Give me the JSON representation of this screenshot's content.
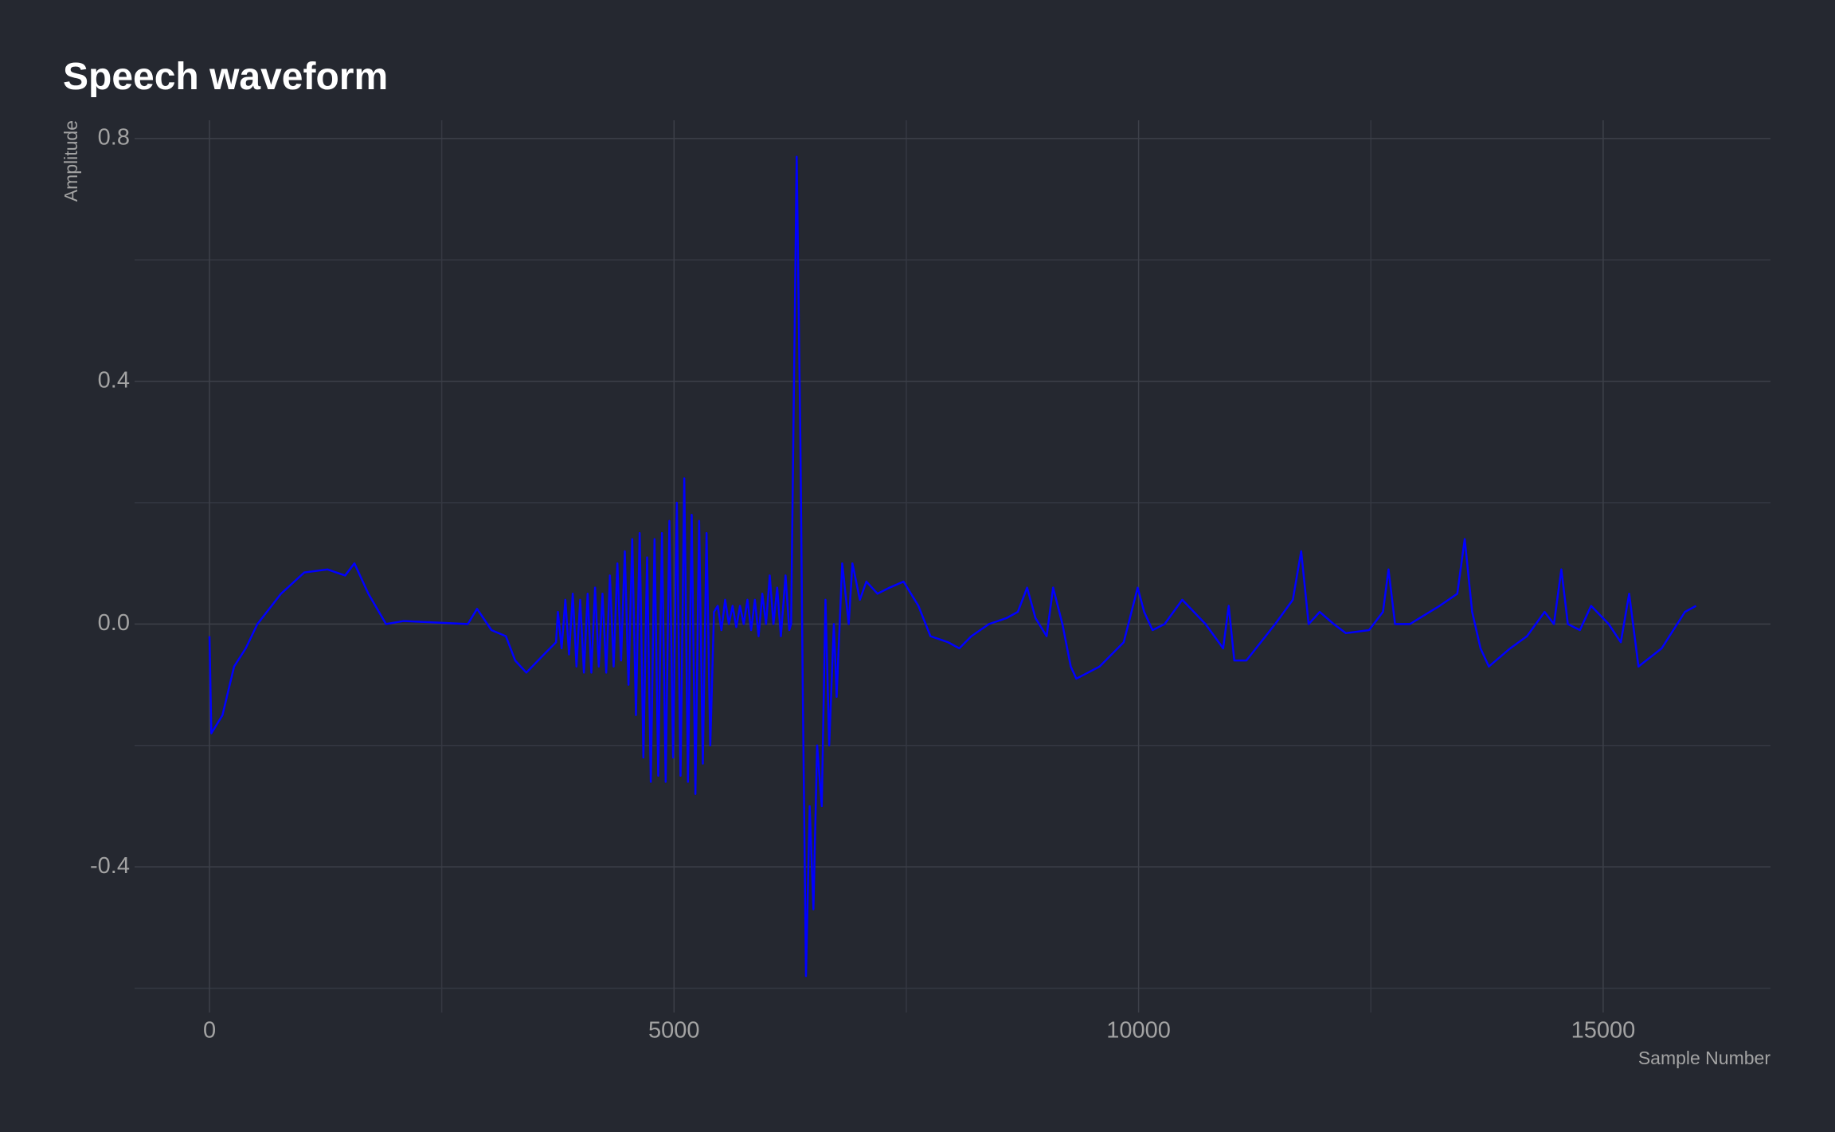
{
  "chart_data": {
    "type": "line",
    "title": "Speech waveform",
    "x_label": "Sample Number",
    "y_label": "Amplitude",
    "x": [
      0,
      20,
      140,
      265,
      390,
      516,
      770,
      1020,
      1270,
      1460,
      1560,
      1710,
      1900,
      2090,
      2780,
      2880,
      3035,
      3190,
      3290,
      3410,
      3600,
      3730,
      3750,
      3790,
      3830,
      3870,
      3910,
      3950,
      3990,
      4030,
      4070,
      4110,
      4150,
      4190,
      4230,
      4270,
      4310,
      4350,
      4390,
      4430,
      4470,
      4510,
      4550,
      4590,
      4630,
      4670,
      4710,
      4750,
      4790,
      4830,
      4870,
      4910,
      4950,
      4990,
      5030,
      5070,
      5110,
      5150,
      5190,
      5230,
      5270,
      5310,
      5350,
      5390,
      5430,
      5470,
      5510,
      5550,
      5590,
      5630,
      5670,
      5710,
      5750,
      5790,
      5830,
      5870,
      5910,
      5950,
      5990,
      6030,
      6070,
      6110,
      6150,
      6200,
      6240,
      6260,
      6320,
      6360,
      6385,
      6420,
      6460,
      6500,
      6540,
      6590,
      6630,
      6670,
      6720,
      6750,
      6810,
      6880,
      6920,
      7000,
      7070,
      7190,
      7320,
      7470,
      7630,
      7760,
      7950,
      8070,
      8200,
      8390,
      8580,
      8700,
      8800,
      8890,
      9010,
      9080,
      9180,
      9270,
      9330,
      9580,
      9840,
      9990,
      10060,
      10150,
      10280,
      10470,
      10720,
      10910,
      10970,
      11030,
      11160,
      11470,
      11660,
      11750,
      11830,
      11950,
      12100,
      12230,
      12480,
      12630,
      12690,
      12760,
      12920,
      13240,
      13430,
      13510,
      13590,
      13680,
      13770,
      14000,
      14180,
      14370,
      14470,
      14550,
      14620,
      14750,
      14870,
      15060,
      15190,
      15280,
      15380,
      15630,
      15880,
      16000
    ],
    "series": [
      {
        "name": "Amplitude",
        "color": "#0000ff",
        "values": [
          -0.02,
          -0.18,
          -0.15,
          -0.07,
          -0.04,
          0.0,
          0.05,
          0.085,
          0.09,
          0.08,
          0.1,
          0.05,
          0.0,
          0.005,
          0.0,
          0.025,
          -0.01,
          -0.02,
          -0.06,
          -0.08,
          -0.05,
          -0.03,
          0.02,
          -0.04,
          0.04,
          -0.05,
          0.05,
          -0.07,
          0.04,
          -0.08,
          0.05,
          -0.08,
          0.06,
          -0.07,
          0.05,
          -0.08,
          0.08,
          -0.07,
          0.1,
          -0.06,
          0.12,
          -0.1,
          0.14,
          -0.15,
          0.15,
          -0.22,
          0.11,
          -0.26,
          0.14,
          -0.25,
          0.15,
          -0.26,
          0.17,
          -0.22,
          0.2,
          -0.25,
          0.24,
          -0.26,
          0.18,
          -0.28,
          0.17,
          -0.23,
          0.15,
          -0.2,
          0.02,
          0.03,
          -0.01,
          0.04,
          0.0,
          0.03,
          -0.005,
          0.03,
          0.0,
          0.04,
          -0.01,
          0.04,
          -0.02,
          0.05,
          0.0,
          0.08,
          0.0,
          0.06,
          -0.02,
          0.08,
          -0.01,
          0.0,
          0.77,
          0.3,
          -0.1,
          -0.58,
          -0.3,
          -0.47,
          -0.2,
          -0.3,
          0.04,
          -0.2,
          0.0,
          -0.12,
          0.1,
          0.0,
          0.1,
          0.04,
          0.07,
          0.05,
          0.06,
          0.07,
          0.03,
          -0.02,
          -0.03,
          -0.04,
          -0.02,
          0.0,
          0.01,
          0.02,
          0.06,
          0.01,
          -0.02,
          0.06,
          0.0,
          -0.07,
          -0.09,
          -0.07,
          -0.03,
          0.06,
          0.02,
          -0.01,
          0.0,
          0.04,
          0.0,
          -0.04,
          0.03,
          -0.06,
          -0.06,
          0.0,
          0.04,
          0.12,
          0.0,
          0.02,
          0.0,
          -0.015,
          -0.01,
          0.02,
          0.09,
          0.0,
          0.0,
          0.03,
          0.05,
          0.14,
          0.02,
          -0.04,
          -0.07,
          -0.04,
          -0.02,
          0.02,
          0.0,
          0.09,
          0.0,
          -0.01,
          0.03,
          0.0,
          -0.03,
          0.05,
          -0.07,
          -0.04,
          0.02,
          0.03
        ]
      }
    ],
    "xlim": [
      -806,
      16801
    ],
    "ylim": [
      -0.64,
      0.83
    ],
    "xticks": [
      0,
      5000,
      10000,
      15000
    ],
    "xminorticks": [
      2500,
      7500,
      12500
    ],
    "yticks": [
      {
        "value": -0.4,
        "label": "-0.4"
      },
      {
        "value": 0,
        "label": "0.0"
      },
      0.4,
      0.8
    ],
    "yminorticks": [
      -0.6,
      -0.2,
      0.2,
      0.6
    ],
    "grid": true
  }
}
